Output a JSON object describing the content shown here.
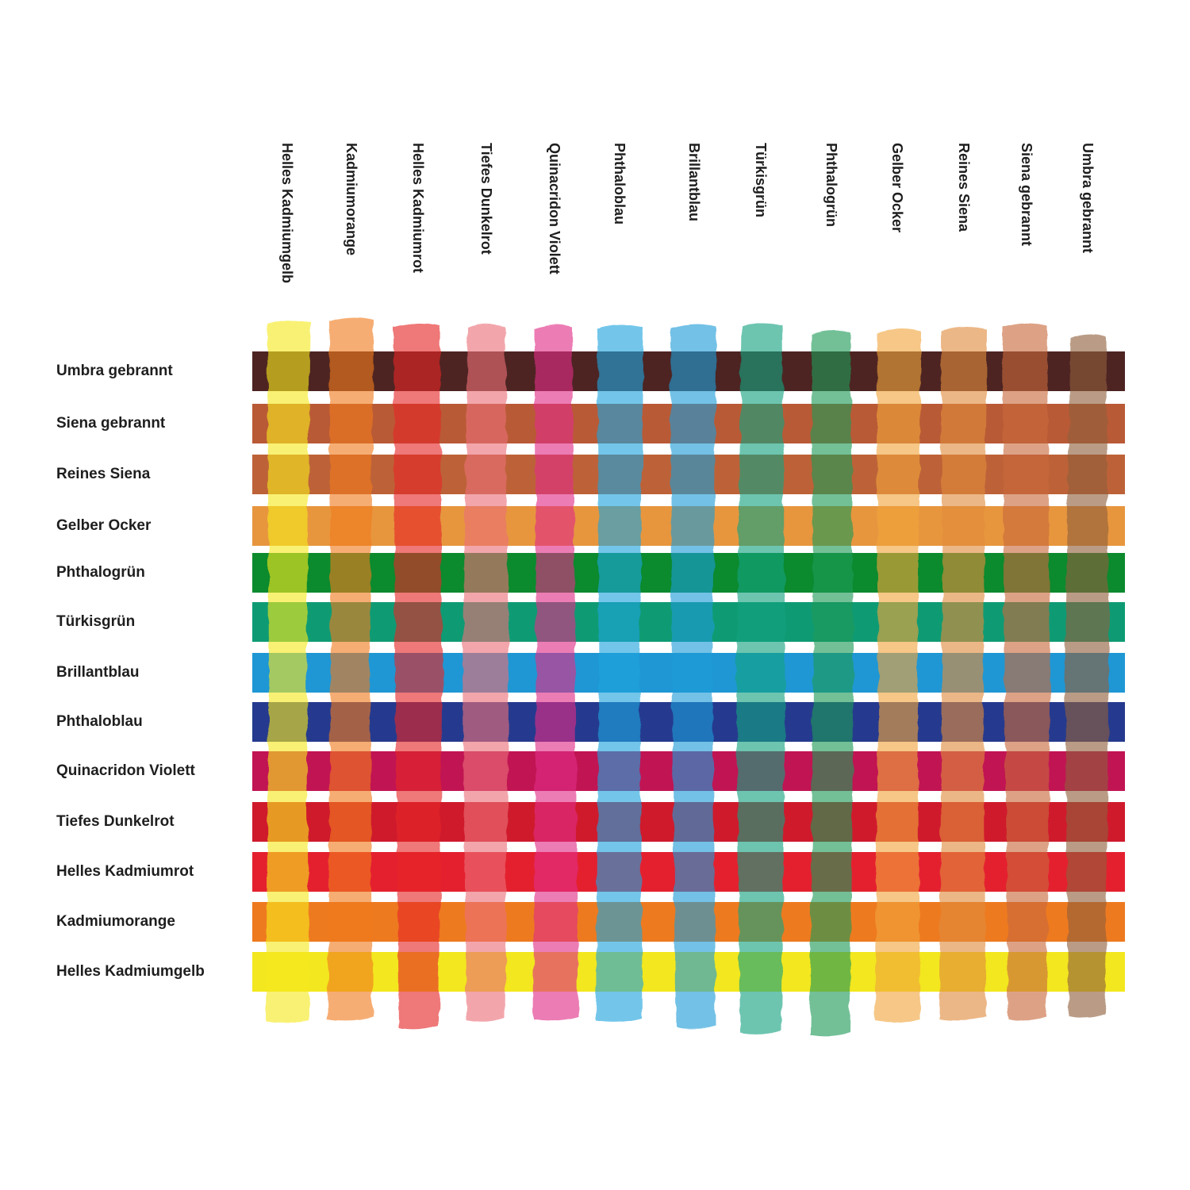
{
  "columns": [
    {
      "label": "Helles Kadmiumgelb",
      "color": "#f5e81c"
    },
    {
      "label": "Kadmiumorange",
      "color": "#f07a1c"
    },
    {
      "label": "Helles Kadmiumrot",
      "color": "#e52626"
    },
    {
      "label": "Tiefes Dunkelrot",
      "color": "#ea6f78"
    },
    {
      "label": "Quinacridon Violett",
      "color": "#e02f86"
    },
    {
      "label": "Phthaloblau",
      "color": "#1aa3dd"
    },
    {
      "label": "Brillantblau",
      "color": "#1c9bd6"
    },
    {
      "label": "Türkisgrün",
      "color": "#17a17f"
    },
    {
      "label": "Phthalogrün",
      "color": "#1d9a55"
    },
    {
      "label": "Gelber Ocker",
      "color": "#f0a43c"
    },
    {
      "label": "Reines Siena",
      "color": "#e08a3c"
    },
    {
      "label": "Siena gebrannt",
      "color": "#c8673a"
    },
    {
      "label": "Umbra gebrannt",
      "color": "#8f5e3c"
    }
  ],
  "rows": [
    {
      "label": "Umbra gebrannt",
      "color": "#4d2422"
    },
    {
      "label": "Siena gebrannt",
      "color": "#b95a36"
    },
    {
      "label": "Reines Siena",
      "color": "#bd6238"
    },
    {
      "label": "Gelber Ocker",
      "color": "#e7963e"
    },
    {
      "label": "Phthalogrün",
      "color": "#0b8a2e"
    },
    {
      "label": "Türkisgrün",
      "color": "#0e9b74"
    },
    {
      "label": "Brillantblau",
      "color": "#1f97d4"
    },
    {
      "label": "Phthaloblau",
      "color": "#253a8e"
    },
    {
      "label": "Quinacridon Violett",
      "color": "#c11453"
    },
    {
      "label": "Tiefes Dunkelrot",
      "color": "#cf1a2c"
    },
    {
      "label": "Helles Kadmiumrot",
      "color": "#e4202f"
    },
    {
      "label": "Kadmiumorange",
      "color": "#ee7a1f"
    },
    {
      "label": "Helles Kadmiumgelb",
      "color": "#f3e71f"
    }
  ]
}
